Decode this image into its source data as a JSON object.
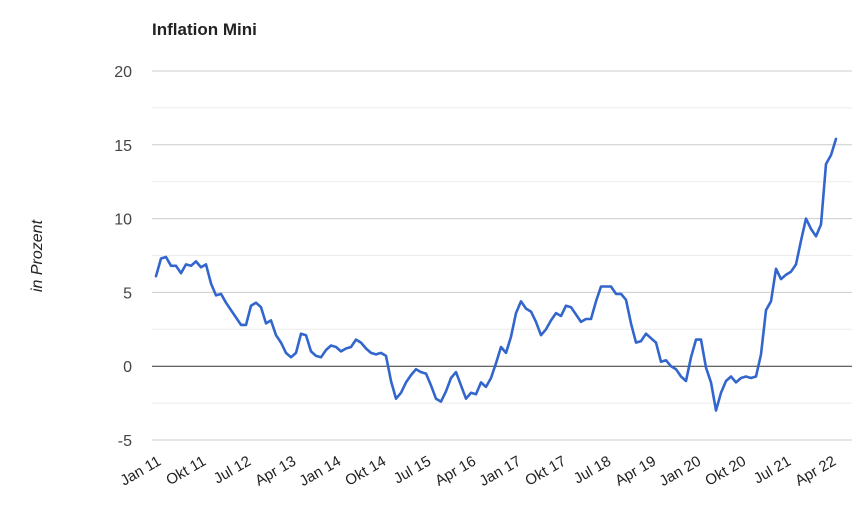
{
  "chart_data": {
    "type": "line",
    "title": "Inflation Mini",
    "xlabel": "",
    "ylabel": "in Prozent",
    "ylim": [
      -5,
      20
    ],
    "yticks": [
      20,
      15,
      10,
      5,
      0,
      -5
    ],
    "grid": true,
    "legend": "none",
    "colors": {
      "line": "#3366cc",
      "grid": "#cccccc",
      "zero": "#333333"
    },
    "xticks": [
      {
        "label": "Jan 11",
        "month": 0
      },
      {
        "label": "Okt 11",
        "month": 9
      },
      {
        "label": "Jul 12",
        "month": 18
      },
      {
        "label": "Apr 13",
        "month": 27
      },
      {
        "label": "Jan 14",
        "month": 36
      },
      {
        "label": "Okt 14",
        "month": 45
      },
      {
        "label": "Jul 15",
        "month": 54
      },
      {
        "label": "Apr 16",
        "month": 63
      },
      {
        "label": "Jan 17",
        "month": 72
      },
      {
        "label": "Okt 17",
        "month": 81
      },
      {
        "label": "Jul 18",
        "month": 90
      },
      {
        "label": "Apr 19",
        "month": 99
      },
      {
        "label": "Jan 20",
        "month": 108
      },
      {
        "label": "Okt 20",
        "month": 117
      },
      {
        "label": "Jul 21",
        "month": 126
      },
      {
        "label": "Apr 22",
        "month": 135
      }
    ],
    "series": [
      {
        "name": "",
        "values": [
          6.1,
          7.3,
          7.4,
          6.8,
          6.8,
          6.3,
          6.9,
          6.8,
          7.1,
          6.7,
          6.9,
          5.6,
          4.8,
          4.9,
          4.3,
          3.8,
          3.3,
          2.8,
          2.8,
          4.1,
          4.3,
          4.0,
          2.9,
          3.1,
          2.1,
          1.6,
          0.9,
          0.6,
          0.9,
          2.2,
          2.1,
          1.0,
          0.7,
          0.6,
          1.1,
          1.4,
          1.3,
          1.0,
          1.2,
          1.3,
          1.8,
          1.6,
          1.2,
          0.9,
          0.8,
          0.9,
          0.7,
          -1.0,
          -2.2,
          -1.8,
          -1.1,
          -0.6,
          -0.2,
          -0.4,
          -0.5,
          -1.3,
          -2.2,
          -2.4,
          -1.7,
          -0.8,
          -0.4,
          -1.3,
          -2.2,
          -1.8,
          -1.9,
          -1.1,
          -1.4,
          -0.8,
          0.2,
          1.3,
          0.9,
          2.0,
          3.6,
          4.4,
          3.9,
          3.7,
          3.0,
          2.1,
          2.5,
          3.1,
          3.6,
          3.4,
          4.1,
          4.0,
          3.5,
          3.0,
          3.2,
          3.2,
          4.4,
          5.4,
          5.4,
          5.4,
          4.9,
          4.9,
          4.5,
          2.9,
          1.6,
          1.7,
          2.2,
          1.9,
          1.6,
          0.3,
          0.4,
          0.0,
          -0.2,
          -0.7,
          -1.0,
          0.6,
          1.8,
          1.8,
          -0.1,
          -1.1,
          -3.0,
          -1.8,
          -1.0,
          -0.7,
          -1.1,
          -0.8,
          -0.7,
          -0.8,
          -0.7,
          0.8,
          3.8,
          4.4,
          6.6,
          5.9,
          6.2,
          6.4,
          6.9,
          8.5,
          10.0,
          9.3,
          8.8,
          9.6,
          13.7,
          14.3,
          15.4
        ]
      }
    ]
  }
}
